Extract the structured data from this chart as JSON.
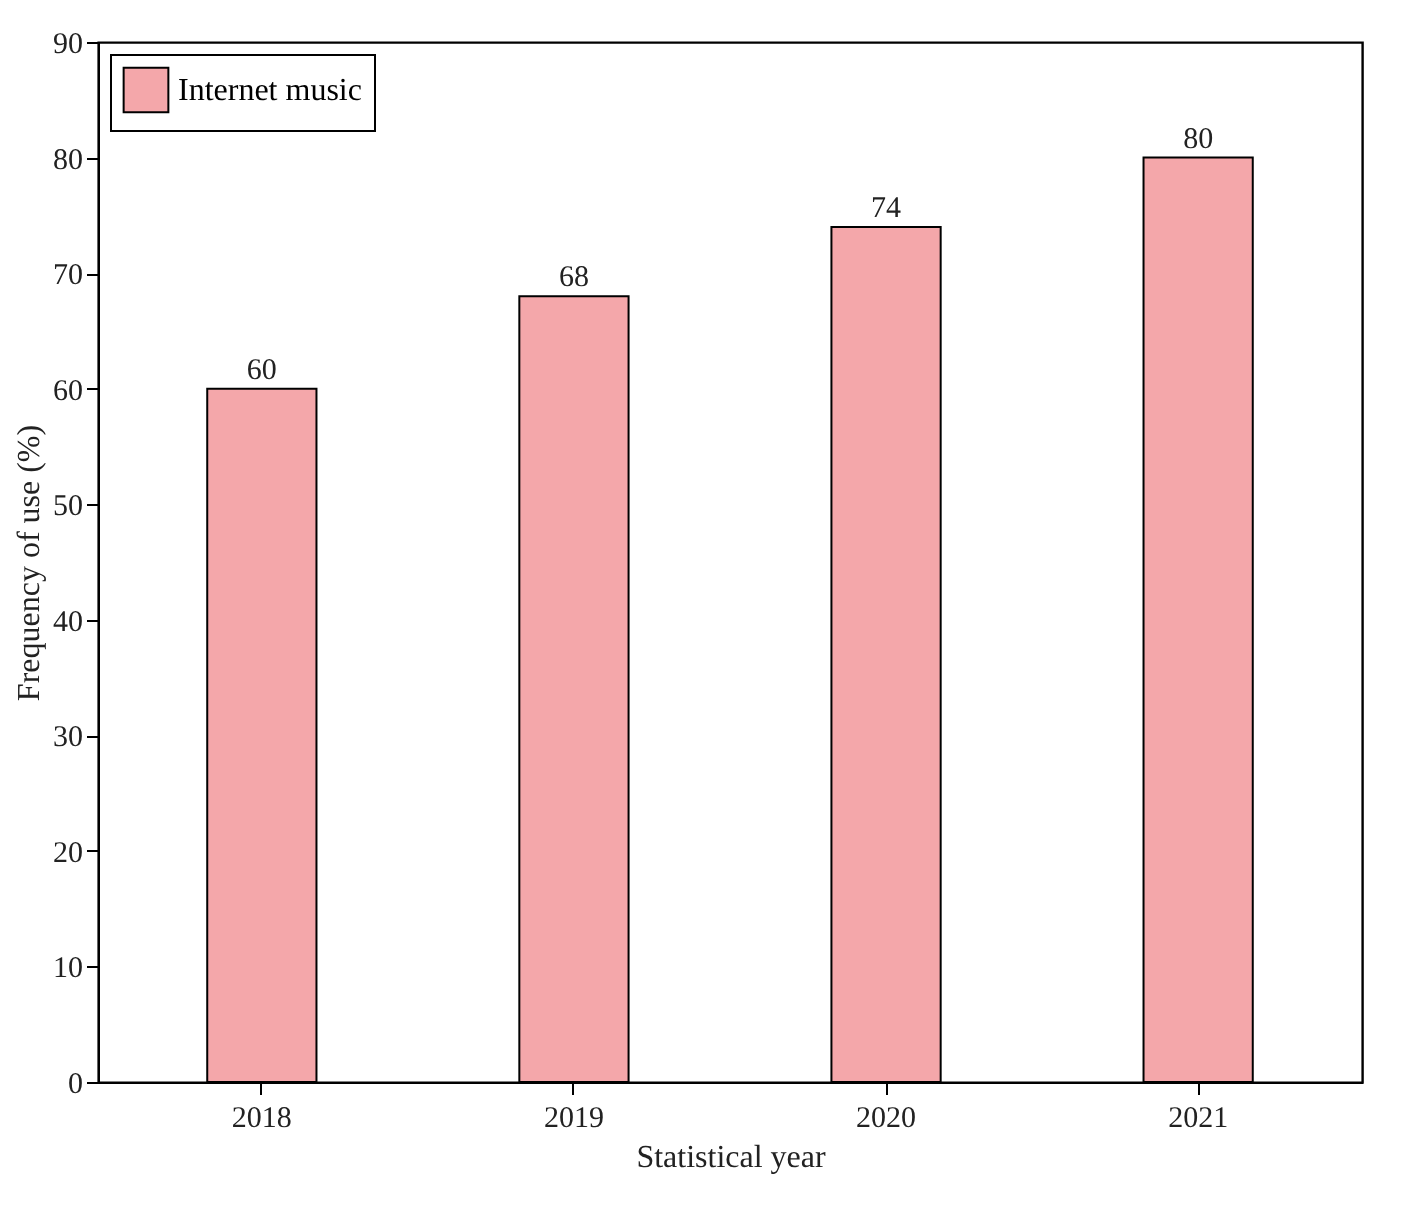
{
  "chart_data": {
    "type": "bar",
    "xlabel": "Statistical year",
    "ylabel": "Frequency of use (%)",
    "categories": [
      "2018",
      "2019",
      "2020",
      "2021"
    ],
    "series": [
      {
        "name": "Internet music",
        "color": "#f4a7aa",
        "values": [
          60,
          68,
          74,
          80
        ]
      }
    ],
    "ylim": [
      0,
      90
    ],
    "yticks": [
      0,
      10,
      20,
      30,
      40,
      50,
      60,
      70,
      80,
      90
    ],
    "data_labels": true,
    "legend": "top left",
    "grid": false
  }
}
